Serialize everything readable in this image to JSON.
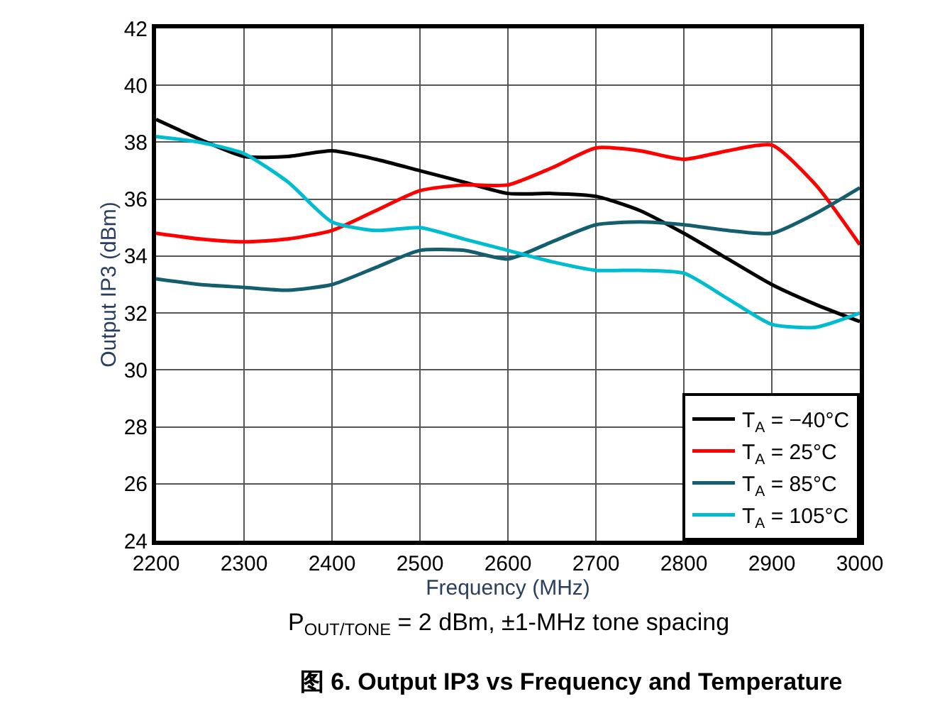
{
  "chart_data": {
    "type": "line",
    "title": "图 6. Output IP3 vs Frequency and Temperature",
    "xlabel": "Frequency (MHz)",
    "ylabel": "Output IP3 (dBm)",
    "annotations": [
      "P$_{OUT/TONE}$ = 2 dBm, ±1-MHz tone spacing"
    ],
    "x": [
      2200,
      2250,
      2300,
      2350,
      2400,
      2450,
      2500,
      2550,
      2600,
      2650,
      2700,
      2750,
      2800,
      2850,
      2900,
      2950,
      3000
    ],
    "series": [
      {
        "name": "T$_{A}$ = −40°C",
        "color": "#000000",
        "values": [
          38.8,
          38.1,
          37.5,
          37.5,
          37.7,
          37.4,
          37.0,
          36.6,
          36.2,
          36.2,
          36.1,
          35.6,
          34.8,
          33.9,
          33.0,
          32.3,
          31.7
        ]
      },
      {
        "name": "T$_{A}$ = 25°C",
        "color": "#ff0000",
        "values": [
          34.8,
          34.6,
          34.5,
          34.6,
          34.9,
          35.6,
          36.3,
          36.5,
          36.5,
          37.1,
          37.8,
          37.7,
          37.4,
          37.7,
          37.9,
          36.5,
          34.4
        ]
      },
      {
        "name": "T$_{A}$ = 85°C",
        "color": "#145e6e",
        "values": [
          33.2,
          33.0,
          32.9,
          32.8,
          33.0,
          33.6,
          34.2,
          34.2,
          33.9,
          34.5,
          35.1,
          35.2,
          35.1,
          34.9,
          34.8,
          35.5,
          36.4
        ]
      },
      {
        "name": "T$_{A}$ = 105°C",
        "color": "#00bcd0",
        "values": [
          38.2,
          38.0,
          37.6,
          36.6,
          35.2,
          34.9,
          35.0,
          34.6,
          34.2,
          33.8,
          33.5,
          33.5,
          33.4,
          32.5,
          31.6,
          31.5,
          32.0
        ]
      }
    ],
    "xlim": [
      2200,
      3000
    ],
    "xticks": [
      2200,
      2300,
      2400,
      2500,
      2600,
      2700,
      2800,
      2900,
      3000
    ],
    "ylim": [
      24,
      42
    ],
    "yticks": [
      24,
      26,
      28,
      30,
      32,
      34,
      36,
      38,
      40,
      42
    ],
    "grid": true,
    "legend": "bottom right",
    "marker": "none",
    "line_style": "solid"
  }
}
